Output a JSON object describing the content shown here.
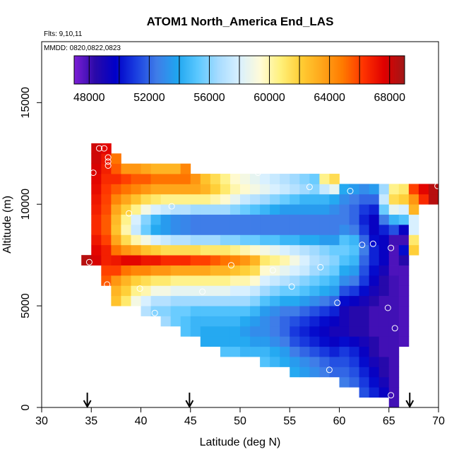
{
  "chart_data": {
    "type": "heatmap",
    "title": "ATOM1 North_America End_LAS",
    "flights_note": "Flts: 9,10,11",
    "dates_note": "MMDD: 0820,0822,0823",
    "xlabel": "Latitude (deg N)",
    "ylabel": "Altitude (m)",
    "xlim": [
      30,
      70
    ],
    "ylim": [
      0,
      18000
    ],
    "x_ticks": [
      30,
      35,
      40,
      45,
      50,
      55,
      60,
      65,
      70
    ],
    "y_ticks": [
      0,
      5000,
      10000,
      15000
    ],
    "colorbar": {
      "range": [
        47000,
        69000
      ],
      "ticks": [
        48000,
        52000,
        56000,
        60000,
        64000,
        68000
      ],
      "levels": [
        47000,
        48000,
        50000,
        52000,
        54000,
        56000,
        58000,
        60000,
        62000,
        64000,
        66000,
        68000,
        69000
      ],
      "colors": [
        "#7d1fd6",
        "#2a0aa8",
        "#0000c8",
        "#1a3fe0",
        "#3f7de8",
        "#1fa6f0",
        "#5cc8ff",
        "#a8dcff",
        "#d8f0ff",
        "#fffbd8",
        "#fff07a",
        "#ffcc33",
        "#ffa61a",
        "#ff7a00",
        "#ff3300",
        "#e00000",
        "#a01818"
      ]
    },
    "grid_cell": {
      "lat_width": 1.0,
      "alt_height": 500
    },
    "columns": [
      {
        "lat_start": 35,
        "alt_bottom": 7000,
        "alt_top": 13000,
        "values": [
          67800,
          67500,
          67000,
          66500,
          66500,
          66800,
          67000,
          67300,
          67500,
          67800,
          68000,
          68000
        ]
      },
      {
        "lat_start": 36,
        "alt_bottom": 6000,
        "alt_top": 13000,
        "values": [
          65500,
          66000,
          66800,
          66800,
          66000,
          65500,
          65500,
          65800,
          66000,
          66200,
          66500,
          66800,
          67000,
          67500
        ]
      },
      {
        "lat_start": 37,
        "alt_bottom": 5000,
        "alt_top": 12500,
        "values": [
          62500,
          63000,
          64000,
          66000,
          67000,
          65000,
          63500,
          62500,
          62800,
          63500,
          64500,
          65500,
          66500,
          65500,
          65000
        ]
      },
      {
        "lat_start": 38,
        "alt_bottom": 5000,
        "alt_top": 12000,
        "values": [
          61000,
          62000,
          63000,
          65000,
          67500,
          64000,
          61500,
          60000,
          60500,
          62000,
          63500,
          65000,
          66000,
          64000
        ]
      },
      {
        "lat_start": 39,
        "alt_bottom": 5000,
        "alt_top": 12000,
        "values": [
          59000,
          60500,
          62000,
          64500,
          67500,
          63500,
          60000,
          57500,
          58000,
          60500,
          62500,
          64500,
          65500,
          64000
        ]
      },
      {
        "lat_start": 40,
        "alt_bottom": 4500,
        "alt_top": 12000,
        "values": [
          57000,
          58000,
          60000,
          61500,
          64500,
          67000,
          62500,
          59000,
          55500,
          56000,
          59000,
          61500,
          64000,
          65500,
          63500
        ]
      },
      {
        "lat_start": 41,
        "alt_bottom": 4500,
        "alt_top": 12000,
        "values": [
          56000,
          57000,
          59000,
          61000,
          64000,
          67000,
          62000,
          58000,
          54000,
          54500,
          58000,
          61000,
          63500,
          65000,
          63000
        ]
      },
      {
        "lat_start": 42,
        "alt_bottom": 4000,
        "alt_top": 12000,
        "values": [
          56500,
          56000,
          57000,
          59000,
          61000,
          64000,
          66500,
          61500,
          57500,
          53500,
          53500,
          57500,
          60500,
          63500,
          65000,
          63000
        ]
      },
      {
        "lat_start": 43,
        "alt_bottom": 4000,
        "alt_top": 12000,
        "values": [
          55500,
          55500,
          56500,
          58500,
          60500,
          63500,
          66500,
          61500,
          57000,
          53000,
          53000,
          57000,
          60500,
          63500,
          65000,
          63000
        ]
      },
      {
        "lat_start": 44,
        "alt_bottom": 3500,
        "alt_top": 12000,
        "values": [
          55000,
          55000,
          55500,
          56500,
          58500,
          60500,
          63500,
          66500,
          61500,
          57000,
          52800,
          52800,
          57000,
          60500,
          63500,
          65000,
          64500
        ]
      },
      {
        "lat_start": 45,
        "alt_bottom": 3500,
        "alt_top": 11500,
        "values": [
          54500,
          54500,
          55000,
          56500,
          58500,
          60500,
          63500,
          66000,
          61500,
          56500,
          52500,
          52500,
          56500,
          60500,
          63500,
          64000
        ]
      },
      {
        "lat_start": 46,
        "alt_bottom": 3000,
        "alt_top": 11500,
        "values": [
          54000,
          54000,
          54500,
          55000,
          56500,
          58500,
          60500,
          63500,
          66000,
          61000,
          56500,
          52500,
          52500,
          56500,
          60500,
          63000,
          62500
        ]
      },
      {
        "lat_start": 47,
        "alt_bottom": 3000,
        "alt_top": 11500,
        "values": [
          54000,
          54000,
          54500,
          55000,
          56500,
          58500,
          60500,
          63000,
          65500,
          61000,
          56500,
          52500,
          52500,
          56500,
          60000,
          62000,
          61500
        ]
      },
      {
        "lat_start": 48,
        "alt_bottom": 2500,
        "alt_top": 11500,
        "values": [
          55000,
          54000,
          54000,
          54500,
          55000,
          56500,
          58500,
          60500,
          63000,
          65000,
          61000,
          56000,
          52500,
          52500,
          56500,
          59500,
          61000,
          60500
        ]
      },
      {
        "lat_start": 49,
        "alt_bottom": 2500,
        "alt_top": 11500,
        "values": [
          55000,
          54000,
          54000,
          54500,
          55000,
          56500,
          58000,
          60000,
          62500,
          64500,
          60500,
          56000,
          52500,
          52500,
          56000,
          58500,
          60000,
          59500
        ]
      },
      {
        "lat_start": 50,
        "alt_bottom": 2500,
        "alt_top": 11500,
        "values": [
          54500,
          54000,
          53500,
          54000,
          55000,
          56500,
          58000,
          60000,
          62000,
          64000,
          60000,
          55500,
          52500,
          52500,
          55500,
          57500,
          59500,
          59000
        ]
      },
      {
        "lat_start": 51,
        "alt_bottom": 2500,
        "alt_top": 11500,
        "values": [
          54500,
          53500,
          53000,
          53500,
          54500,
          56000,
          57500,
          59500,
          61500,
          63000,
          59500,
          55500,
          52500,
          52500,
          55000,
          57000,
          59000,
          58500
        ]
      },
      {
        "lat_start": 52,
        "alt_bottom": 2000,
        "alt_top": 11500,
        "values": [
          55000,
          54500,
          53500,
          53000,
          53000,
          53500,
          55000,
          56500,
          58000,
          59500,
          61000,
          59000,
          55000,
          52500,
          52500,
          54500,
          56500,
          58500,
          58000
        ]
      },
      {
        "lat_start": 53,
        "alt_bottom": 2000,
        "alt_top": 11500,
        "values": [
          54500,
          54000,
          53000,
          52500,
          52500,
          53000,
          54500,
          56000,
          57500,
          59000,
          60500,
          58500,
          55000,
          52500,
          52500,
          54000,
          56000,
          58000,
          57500
        ]
      },
      {
        "lat_start": 54,
        "alt_bottom": 2000,
        "alt_top": 11500,
        "values": [
          54000,
          53500,
          52500,
          52000,
          52000,
          52500,
          54000,
          55500,
          57000,
          58500,
          60000,
          58000,
          54500,
          52500,
          52500,
          53500,
          55500,
          57500,
          57000
        ]
      },
      {
        "lat_start": 55,
        "alt_bottom": 1500,
        "alt_top": 11500,
        "values": [
          54000,
          53500,
          52500,
          51500,
          51000,
          51500,
          52500,
          54000,
          55500,
          56500,
          58000,
          59000,
          57500,
          54500,
          52500,
          52500,
          53500,
          55000,
          57000,
          56500
        ]
      },
      {
        "lat_start": 56,
        "alt_bottom": 1500,
        "alt_top": 11500,
        "values": [
          53500,
          53000,
          52000,
          51000,
          50500,
          51000,
          52000,
          53500,
          55000,
          56000,
          57500,
          58000,
          57000,
          54000,
          52500,
          52500,
          53500,
          54500,
          56500,
          56000
        ]
      },
      {
        "lat_start": 57,
        "alt_bottom": 1500,
        "alt_top": 11500,
        "values": [
          53000,
          52500,
          51500,
          50500,
          50000,
          50500,
          51500,
          53000,
          54500,
          55500,
          56500,
          57000,
          56500,
          54000,
          52500,
          52500,
          53500,
          54500,
          56000,
          55500
        ]
      },
      {
        "lat_start": 58,
        "alt_bottom": 1500,
        "alt_top": 11500,
        "values": [
          52500,
          52000,
          51000,
          50000,
          49500,
          50000,
          51000,
          52500,
          54000,
          55000,
          56000,
          56500,
          56000,
          53500,
          52500,
          52500,
          53500,
          54500,
          57500,
          60500
        ]
      },
      {
        "lat_start": 59,
        "alt_bottom": 1500,
        "alt_top": 11500,
        "values": [
          52000,
          51500,
          50500,
          49500,
          49000,
          49500,
          50500,
          52000,
          53500,
          54500,
          55500,
          56000,
          55500,
          53500,
          52500,
          52500,
          53000,
          54000,
          58500,
          61500
        ]
      },
      {
        "lat_start": 60,
        "alt_bottom": 1000,
        "alt_top": 11000,
        "values": [
          52500,
          52000,
          51500,
          51000,
          50000,
          49000,
          49000,
          49000,
          50000,
          51500,
          53000,
          54000,
          55000,
          55500,
          55000,
          53000,
          52500,
          52500,
          53000,
          54000
        ]
      },
      {
        "lat_start": 61,
        "alt_bottom": 1000,
        "alt_top": 11000,
        "values": [
          52000,
          51500,
          51000,
          50500,
          49500,
          48500,
          48500,
          48500,
          49500,
          51000,
          52500,
          53500,
          54500,
          55000,
          54500,
          52500,
          52000,
          52000,
          52500,
          53500
        ]
      },
      {
        "lat_start": 62,
        "alt_bottom": 500,
        "alt_top": 11000,
        "values": [
          51500,
          51000,
          50500,
          50000,
          49500,
          49000,
          48500,
          48500,
          48500,
          49000,
          50000,
          51000,
          51500,
          52000,
          52500,
          52000,
          51000,
          50500,
          51000,
          52000,
          53000
        ]
      },
      {
        "lat_start": 63,
        "alt_bottom": 500,
        "alt_top": 11000,
        "values": [
          50500,
          50000,
          49500,
          49000,
          48500,
          48500,
          48000,
          48000,
          48000,
          48500,
          49000,
          49500,
          50000,
          50500,
          50500,
          50000,
          49500,
          49500,
          50500,
          52000,
          53500
        ]
      },
      {
        "lat_start": 64,
        "alt_bottom": 500,
        "alt_top": 11000,
        "values": [
          49500,
          49000,
          48500,
          48500,
          48000,
          48000,
          48000,
          48000,
          48000,
          48000,
          48500,
          48500,
          49000,
          49500,
          49500,
          49500,
          50500,
          52500,
          55500,
          57500,
          56500
        ]
      },
      {
        "lat_start": 65,
        "alt_bottom": 0,
        "alt_top": 11000,
        "values": [
          48000,
          48000,
          48000,
          48000,
          48000,
          48000,
          48000,
          48000,
          48000,
          48000,
          48000,
          48000,
          48000,
          47800,
          47800,
          47800,
          48000,
          51500,
          54500,
          58500,
          61500,
          60500
        ]
      },
      {
        "lat_start": 66,
        "alt_bottom": 3000,
        "alt_top": 11000,
        "values": [
          47800,
          47800,
          47800,
          47800,
          47800,
          47800,
          47800,
          47800,
          48500,
          50000,
          48000,
          49500,
          55000,
          58000,
          62000,
          61000
        ]
      },
      {
        "lat_start": 67,
        "alt_bottom": 7500,
        "alt_top": 11000,
        "values": [
          62000,
          61000,
          58000,
          58000,
          63000,
          64000,
          66000
        ]
      },
      {
        "lat_start": 68,
        "alt_bottom": 10000,
        "alt_top": 11000,
        "values": [
          66500,
          67500
        ]
      },
      {
        "lat_start": 69,
        "alt_bottom": 10000,
        "alt_top": 11000,
        "values": [
          68500,
          68500
        ]
      },
      {
        "lat_start": 34,
        "alt_bottom": 7000,
        "alt_top": 7500,
        "values": [
          68500
        ]
      }
    ],
    "points": [
      [
        35.8,
        12750
      ],
      [
        36.3,
        12750
      ],
      [
        36.7,
        12300
      ],
      [
        36.7,
        12100
      ],
      [
        36.7,
        11900
      ],
      [
        35.2,
        11550
      ],
      [
        47.0,
        11800
      ],
      [
        51.8,
        11550
      ],
      [
        57.0,
        10850
      ],
      [
        61.1,
        10650
      ],
      [
        69.9,
        10900
      ],
      [
        38.8,
        9550
      ],
      [
        43.1,
        9900
      ],
      [
        62.3,
        8000
      ],
      [
        63.4,
        8050
      ],
      [
        65.2,
        7850
      ],
      [
        34.8,
        7150
      ],
      [
        49.1,
        7000
      ],
      [
        53.3,
        6750
      ],
      [
        58.1,
        6900
      ],
      [
        36.6,
        6050
      ],
      [
        39.9,
        5850
      ],
      [
        46.2,
        5700
      ],
      [
        55.2,
        5950
      ],
      [
        59.8,
        5150
      ],
      [
        41.4,
        4650
      ],
      [
        64.9,
        4900
      ],
      [
        65.6,
        3900
      ],
      [
        59.0,
        1850
      ],
      [
        65.2,
        600
      ]
    ],
    "arrows_lat": [
      34.6,
      44.9,
      67.1
    ]
  }
}
